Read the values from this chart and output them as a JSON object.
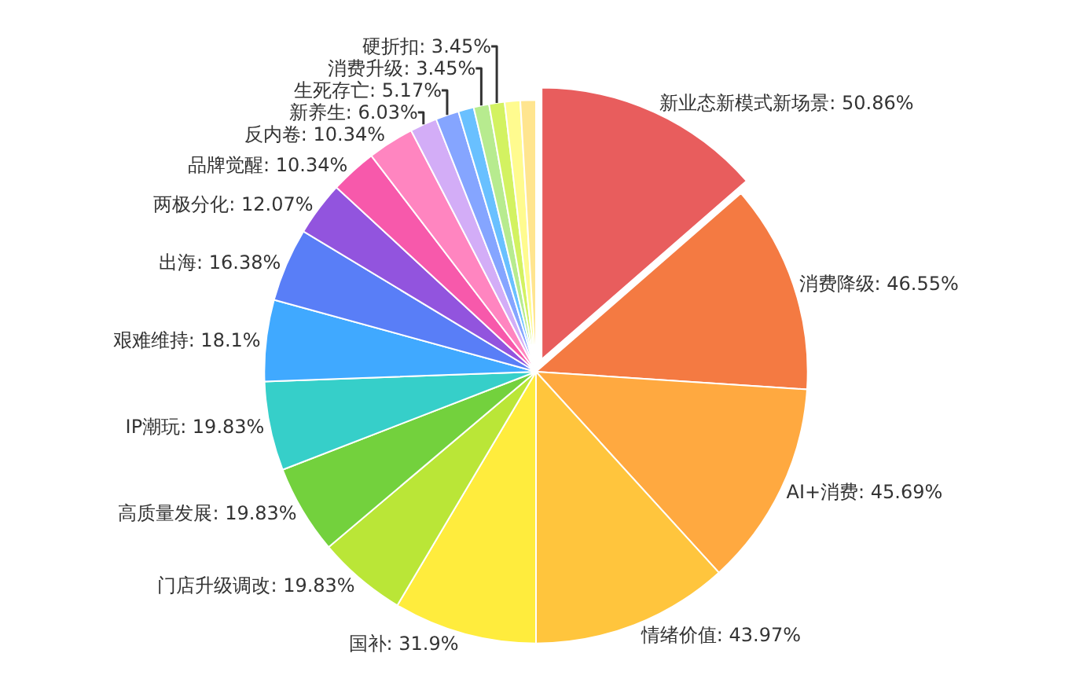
{
  "chart_data": {
    "type": "pie",
    "categories": [
      "新业态新模式新场景",
      "消费降级",
      "AI+消费",
      "情绪价值",
      "国补",
      "门店升级调改",
      "高质量发展",
      "IP潮玩",
      "艰难维持",
      "出海",
      "两极分化",
      "品牌觉醒",
      "反内卷",
      "新养生",
      "生死存亡",
      null,
      "消费升级",
      "硬折扣",
      null,
      null
    ],
    "values": [
      50.86,
      46.55,
      45.69,
      43.97,
      31.9,
      19.83,
      19.83,
      19.83,
      18.1,
      16.38,
      12.07,
      10.34,
      10.34,
      6.03,
      5.17,
      3.45,
      3.45,
      3.45,
      3.45,
      3.45
    ],
    "value_labels": [
      "50.86%",
      "46.55%",
      "45.69%",
      "43.97%",
      "31.9%",
      "19.83%",
      "19.83%",
      "19.83%",
      "18.1%",
      "16.38%",
      "12.07%",
      "10.34%",
      "10.34%",
      "6.03%",
      "5.17%",
      null,
      "3.45%",
      "3.45%",
      null,
      null
    ],
    "colors": [
      "#e85d5d",
      "#f47a42",
      "#ffa940",
      "#ffc53d",
      "#ffec3d",
      "#bae637",
      "#73d13d",
      "#36cfc9",
      "#40a9ff",
      "#597ef7",
      "#9254de",
      "#f759ab",
      "#ff85c0",
      "#d3adf7",
      "#85a5ff",
      "#69c0ff",
      "#b7eb8f",
      "#d3f261",
      "#fffb8f",
      "#ffe58f"
    ],
    "legend": false
  }
}
